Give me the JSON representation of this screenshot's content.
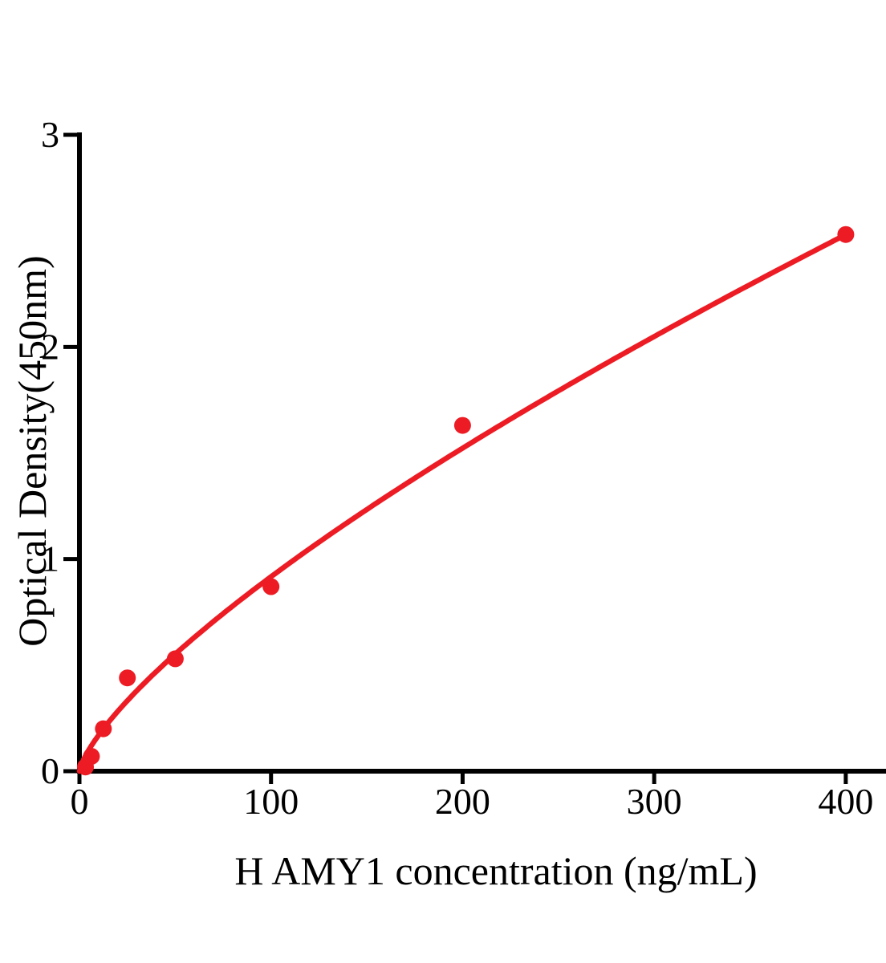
{
  "chart_data": {
    "type": "scatter",
    "title": "",
    "xlabel": "H AMY1 concentration (ng/mL)",
    "ylabel": "Optical Density(450nm)",
    "x": [
      3.125,
      6.25,
      12.5,
      25,
      50,
      100,
      200,
      400
    ],
    "y": [
      0.02,
      0.07,
      0.2,
      0.44,
      0.53,
      0.87,
      1.63,
      2.53
    ],
    "xticks": [
      0,
      100,
      200,
      300,
      400
    ],
    "yticks": [
      0,
      1,
      2,
      3
    ],
    "xlim": [
      0,
      421
    ],
    "ylim": [
      0,
      3
    ],
    "grid": false,
    "legend": null,
    "point_color": "#ED1C24",
    "curve_color": "#ED1C24",
    "axis_color": "#000000",
    "trend": {
      "type": "power",
      "a": 0.0315,
      "b": 0.732,
      "range": [
        0,
        400
      ]
    }
  }
}
